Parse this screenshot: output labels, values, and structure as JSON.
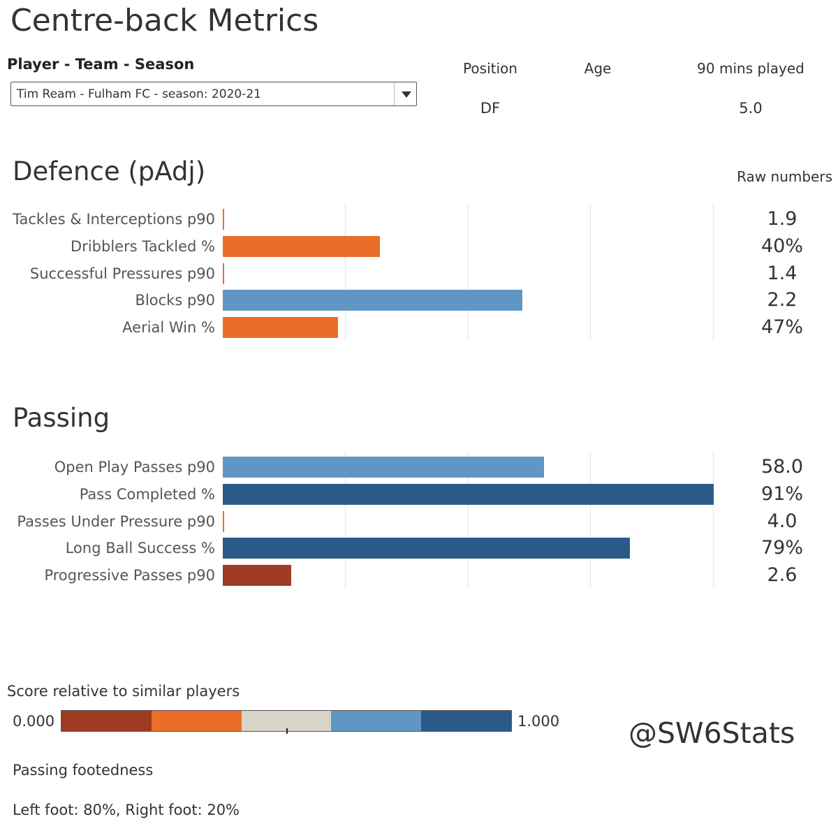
{
  "title": "Centre-back Metrics",
  "selector": {
    "label": "Player - Team - Season",
    "value": "Tim Ream - Fulham FC - season: 2020-21"
  },
  "info": {
    "position_label": "Position",
    "position_value": "DF",
    "age_label": "Age",
    "age_value": "",
    "mins_label": "90 mins played",
    "mins_value": "5.0"
  },
  "raw_header": "Raw numbers",
  "colors": {
    "low": "#9e3b22",
    "mid_low": "#ea6e28",
    "mid": "#d8d4c8",
    "mid_high": "#6096c4",
    "high": "#2b5a89"
  },
  "chart_data": [
    {
      "type": "bar",
      "orientation": "horizontal",
      "title": "Defence (pAdj)",
      "xlim": [
        0,
        1
      ],
      "grid": true,
      "categories": [
        "Tackles & Interceptions p90",
        "Dribblers Tackled %",
        "Successful Pressures p90",
        "Blocks p90",
        "Aerial Win %"
      ],
      "values": [
        0.0,
        0.32,
        0.0,
        0.61,
        0.235
      ],
      "colors": [
        "#ea6e28",
        "#ea6e28",
        "#ea6e28",
        "#6096c4",
        "#ea6e28"
      ],
      "raw_values": [
        "1.9",
        "40%",
        "1.4",
        "2.2",
        "47%"
      ]
    },
    {
      "type": "bar",
      "orientation": "horizontal",
      "title": "Passing",
      "xlim": [
        0,
        1
      ],
      "grid": true,
      "categories": [
        "Open Play Passes p90",
        "Pass Completed %",
        "Passes Under Pressure p90",
        "Long Ball Success %",
        "Progressive Passes p90"
      ],
      "values": [
        0.655,
        1.0,
        0.0,
        0.83,
        0.14
      ],
      "colors": [
        "#6096c4",
        "#2b5a89",
        "#ea6e28",
        "#2b5a89",
        "#9e3b22"
      ],
      "raw_values": [
        "58.0",
        "91%",
        "4.0",
        "79%",
        "2.6"
      ]
    }
  ],
  "legend": {
    "title": "Score relative to similar players",
    "min_label": "0.000",
    "max_label": "1.000"
  },
  "watermark": "@SW6Stats",
  "footedness": {
    "title": "Passing footedness",
    "value": "Left foot: 80%, Right foot: 20%"
  }
}
